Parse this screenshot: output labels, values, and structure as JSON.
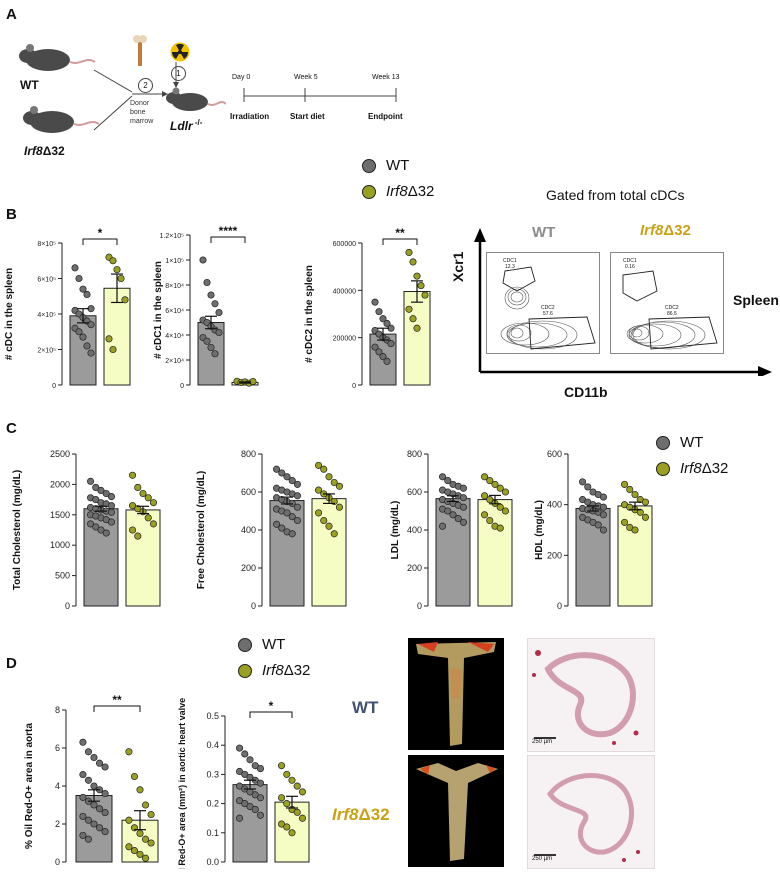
{
  "colors": {
    "wt_fill": "#9b9b9b",
    "ko_fill": "#f5fcc4",
    "wt_dot": "#6e6e6e",
    "ko_dot": "#9aa021",
    "ko_text": "#c9a114",
    "wt_text": "#3f5271"
  },
  "panelA": {
    "letter": "A",
    "wt_label": "WT",
    "ko_label_italic": "Irf8",
    "ko_label_rest": "Δ32",
    "step2": "2",
    "step1": "1",
    "donor_label": "Donor\nbone\nmarrow",
    "recipient_italic": "Ldlr",
    "recipient_sup": " -/-",
    "timeline": {
      "ticks": [
        "Day 0",
        "Week 5",
        "Week 13"
      ],
      "events": [
        "Irradiation",
        "Start diet",
        "Endpoint"
      ]
    }
  },
  "legend": {
    "wt": "WT",
    "ko_italic": "Irf8",
    "ko_rest": "Δ32"
  },
  "panelB": {
    "letter": "B",
    "gated_title": "Gated from total cDCs",
    "flow_wt": "WT",
    "flow_ko_italic": "Irf8",
    "flow_ko_rest": "Δ32",
    "flow_y": "Xcr1",
    "flow_x": "CD11b",
    "organ": "Spleen",
    "wt_gates": {
      "cdc1_name": "CDC1",
      "cdc1_val": "12.3",
      "cdc2_name": "CDC2",
      "cdc2_val": "57.6"
    },
    "ko_gates": {
      "cdc1_name": "CDC1",
      "cdc1_val": "0.16",
      "cdc2_name": "CDC2",
      "cdc2_val": "86.5"
    }
  },
  "panelC": {
    "letter": "C"
  },
  "panelD": {
    "letter": "D",
    "row_wt": "WT",
    "row_ko_italic": "Irf8",
    "row_ko_rest": "Δ32",
    "scale_bar": "250 µm"
  },
  "chart_data": [
    {
      "id": "B1",
      "type": "bar",
      "categories": [
        "WT",
        "Irf8Δ32"
      ],
      "values": [
        390000,
        545000
      ],
      "errors": [
        40000,
        80000
      ],
      "ylabel": "# cDC in the spleen",
      "ylim": [
        0,
        800000
      ],
      "yticks": [
        "0",
        "2×10⁵",
        "4×10⁵",
        "6×10⁵",
        "8×10⁵"
      ],
      "significance": "*",
      "points": [
        [
          660000,
          600000,
          540000,
          510000,
          430000,
          420000,
          400000,
          380000,
          360000,
          340000,
          320000,
          300000,
          270000,
          220000,
          180000
        ],
        [
          720000,
          700000,
          650000,
          600000,
          480000,
          260000,
          200000
        ]
      ]
    },
    {
      "id": "B2",
      "type": "bar",
      "categories": [
        "WT",
        "Irf8Δ32"
      ],
      "values": [
        50000,
        2000
      ],
      "errors": [
        5000,
        500
      ],
      "ylabel": "# cDC1 in the spleen",
      "ylim": [
        0,
        120000
      ],
      "yticks": [
        "0",
        "2×10⁴",
        "4×10⁴",
        "6×10⁴",
        "8×10⁴",
        "1×10⁵",
        "1.2×10⁵"
      ],
      "significance": "****",
      "points": [
        [
          100000,
          82000,
          72000,
          65000,
          58000,
          52000,
          50000,
          47000,
          44000,
          42000,
          38000,
          35000,
          30000,
          25000
        ],
        [
          3000,
          2000,
          2500,
          1500,
          2800
        ]
      ]
    },
    {
      "id": "B3",
      "type": "bar",
      "categories": [
        "WT",
        "Irf8Δ32"
      ],
      "values": [
        215000,
        395000
      ],
      "errors": [
        25000,
        45000
      ],
      "ylabel": "# cDC2 in the spleen",
      "ylim": [
        0,
        600000
      ],
      "yticks": [
        "0",
        "200000",
        "400000",
        "600000"
      ],
      "significance": "**",
      "points": [
        [
          350000,
          310000,
          280000,
          260000,
          240000,
          230000,
          215000,
          200000,
          190000,
          175000,
          160000,
          140000,
          120000,
          100000
        ],
        [
          560000,
          520000,
          460000,
          420000,
          380000,
          320000,
          280000,
          240000
        ]
      ]
    },
    {
      "id": "C1",
      "type": "bar",
      "categories": [
        "WT",
        "Irf8Δ32"
      ],
      "values": [
        1600,
        1580
      ],
      "errors": [
        40,
        60
      ],
      "ylabel": "Total Cholesterol (mg/dL)",
      "ylim": [
        0,
        2500
      ],
      "yticks": [
        "0",
        "500",
        "1000",
        "1500",
        "2000",
        "2500"
      ],
      "points": [
        [
          2050,
          1950,
          1900,
          1850,
          1800,
          1780,
          1750,
          1700,
          1680,
          1650,
          1620,
          1600,
          1580,
          1560,
          1540,
          1500,
          1480,
          1450,
          1420,
          1380,
          1350,
          1300,
          1250,
          1200
        ],
        [
          2150,
          1950,
          1850,
          1780,
          1700,
          1650,
          1600,
          1550,
          1450,
          1350,
          1250,
          1150
        ]
      ]
    },
    {
      "id": "C2",
      "type": "bar",
      "categories": [
        "WT",
        "Irf8Δ32"
      ],
      "values": [
        555,
        565
      ],
      "errors": [
        18,
        25
      ],
      "ylabel": "Free Cholesterol (mg/dL)",
      "ylim": [
        0,
        800
      ],
      "yticks": [
        "0",
        "200",
        "400",
        "600",
        "800"
      ],
      "points": [
        [
          720,
          700,
          680,
          660,
          640,
          620,
          610,
          600,
          590,
          580,
          570,
          560,
          550,
          540,
          520,
          510,
          500,
          490,
          470,
          450,
          430,
          410,
          390,
          380
        ],
        [
          740,
          720,
          680,
          650,
          630,
          610,
          590,
          570,
          550,
          520,
          490,
          450,
          420,
          380
        ]
      ]
    },
    {
      "id": "C3",
      "type": "bar",
      "categories": [
        "WT",
        "Irf8Δ32"
      ],
      "values": [
        565,
        560
      ],
      "errors": [
        15,
        22
      ],
      "ylabel": "LDL (mg/dL)",
      "ylim": [
        0,
        800
      ],
      "yticks": [
        "0",
        "200",
        "400",
        "600",
        "800"
      ],
      "points": [
        [
          680,
          660,
          640,
          630,
          620,
          610,
          600,
          590,
          580,
          570,
          560,
          550,
          540,
          530,
          520,
          510,
          500,
          480,
          460,
          440,
          420
        ],
        [
          680,
          660,
          640,
          620,
          600,
          580,
          560,
          540,
          520,
          500,
          480,
          450,
          420,
          410
        ]
      ]
    },
    {
      "id": "C4",
      "type": "bar",
      "categories": [
        "WT",
        "Irf8Δ32"
      ],
      "values": [
        385,
        395
      ],
      "errors": [
        10,
        15
      ],
      "ylabel": "HDL (mg/dL)",
      "ylim": [
        0,
        600
      ],
      "yticks": [
        "0",
        "200",
        "400",
        "600"
      ],
      "points": [
        [
          490,
          470,
          450,
          440,
          430,
          420,
          410,
          400,
          395,
          390,
          385,
          380,
          375,
          370,
          360,
          350,
          340,
          330,
          320,
          300
        ],
        [
          480,
          460,
          440,
          420,
          410,
          400,
          390,
          380,
          370,
          350,
          330,
          310,
          300
        ]
      ]
    },
    {
      "id": "D1",
      "type": "bar",
      "categories": [
        "WT",
        "Irf8Δ32"
      ],
      "values": [
        3.5,
        2.2
      ],
      "errors": [
        0.3,
        0.5
      ],
      "ylabel": "% Oil Red-O+ area in aorta",
      "ylim": [
        0,
        8
      ],
      "yticks": [
        "0",
        "2",
        "4",
        "6",
        "8"
      ],
      "significance": "**",
      "points": [
        [
          6.3,
          5.8,
          5.5,
          5.2,
          5.0,
          4.6,
          4.3,
          4.0,
          3.8,
          3.6,
          3.4,
          3.2,
          3.0,
          2.8,
          2.6,
          2.4,
          2.2,
          2.0,
          1.8,
          1.6,
          1.4,
          1.2
        ],
        [
          5.8,
          4.5,
          3.8,
          3.0,
          2.5,
          2.2,
          1.8,
          1.5,
          1.2,
          1.0,
          0.8,
          0.6,
          0.4,
          0.2
        ]
      ]
    },
    {
      "id": "D2",
      "type": "bar",
      "categories": [
        "WT",
        "Irf8Δ32"
      ],
      "values": [
        0.265,
        0.205
      ],
      "errors": [
        0.015,
        0.02
      ],
      "ylabel": "Oil Red-O+ area (mm²) in aortic heart valve",
      "ylim": [
        0,
        0.5
      ],
      "yticks": [
        "0.0",
        "0.1",
        "0.2",
        "0.3",
        "0.4",
        "0.5"
      ],
      "significance": "*",
      "points": [
        [
          0.39,
          0.37,
          0.35,
          0.33,
          0.32,
          0.31,
          0.3,
          0.29,
          0.28,
          0.27,
          0.26,
          0.25,
          0.24,
          0.23,
          0.22,
          0.21,
          0.2,
          0.19,
          0.18,
          0.16,
          0.15
        ],
        [
          0.33,
          0.3,
          0.28,
          0.26,
          0.24,
          0.22,
          0.2,
          0.18,
          0.17,
          0.15,
          0.13,
          0.12,
          0.1
        ]
      ]
    }
  ]
}
